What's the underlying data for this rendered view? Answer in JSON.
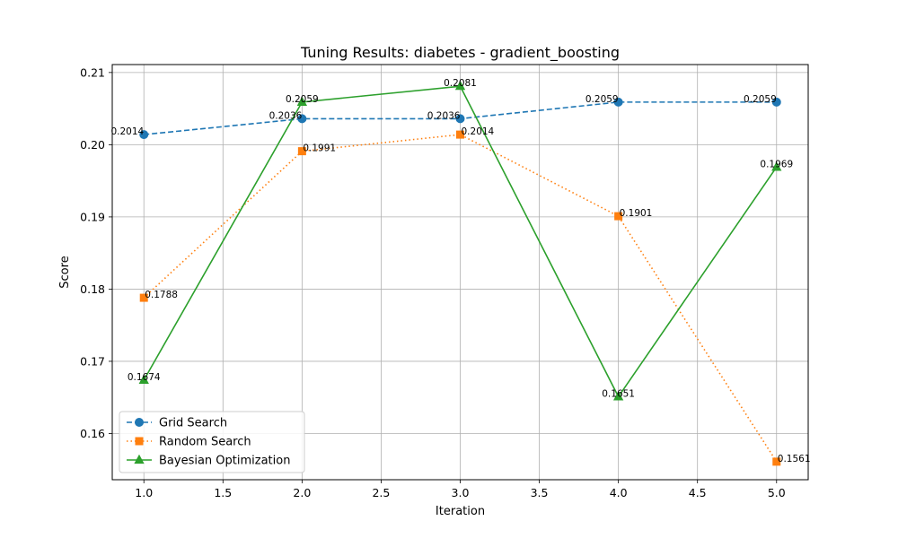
{
  "chart_data": {
    "type": "line",
    "title": "Tuning Results: diabetes - gradient_boosting",
    "xlabel": "Iteration",
    "ylabel": "Score",
    "x": [
      1,
      2,
      3,
      4,
      5
    ],
    "xlim": [
      0.8,
      5.2
    ],
    "ylim": [
      0.1536,
      0.2111
    ],
    "xticks": [
      "1.0",
      "1.5",
      "2.0",
      "2.5",
      "3.0",
      "3.5",
      "4.0",
      "4.5",
      "5.0"
    ],
    "xtick_values": [
      1.0,
      1.5,
      2.0,
      2.5,
      3.0,
      3.5,
      4.0,
      4.5,
      5.0
    ],
    "yticks": [
      "0.16",
      "0.17",
      "0.18",
      "0.19",
      "0.20",
      "0.21"
    ],
    "ytick_values": [
      0.16,
      0.17,
      0.18,
      0.19,
      0.2,
      0.21
    ],
    "grid": true,
    "legend_position": "lower-left",
    "series": [
      {
        "name": "Grid Search",
        "values": [
          0.2014,
          0.2036,
          0.2036,
          0.2059,
          0.2059
        ],
        "labels": [
          "0.2014",
          "0.2036",
          "0.2036",
          "0.2059",
          "0.2059"
        ],
        "color": "#1f77b4",
        "line_style": "dashed",
        "marker": "circle",
        "label_side": "left"
      },
      {
        "name": "Random Search",
        "values": [
          0.1788,
          0.1991,
          0.2014,
          0.1901,
          0.1561
        ],
        "labels": [
          "0.1788",
          "0.1991",
          "0.2014",
          "0.1901",
          "0.1561"
        ],
        "color": "#ff7f0e",
        "line_style": "dotted",
        "marker": "square",
        "label_side": "right"
      },
      {
        "name": "Bayesian Optimization",
        "values": [
          0.1674,
          0.2059,
          0.2081,
          0.1651,
          0.1969
        ],
        "labels": [
          "0.1674",
          "0.2059",
          "0.2081",
          "0.1651",
          "0.1969"
        ],
        "color": "#2ca02c",
        "line_style": "solid",
        "marker": "triangle",
        "label_side": "center"
      }
    ]
  }
}
